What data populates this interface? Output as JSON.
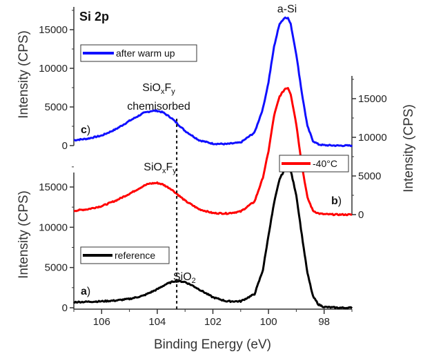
{
  "chart_data": {
    "type": "line",
    "title": "Si 2p",
    "xlabel": "Binding Energy (eV)",
    "ylabel_left": "Intensity (CPS)",
    "ylabel_right": "Intensity (CPS)",
    "xlim": [
      107,
      97
    ],
    "x_ticks": [
      "106",
      "104",
      "102",
      "100",
      "98"
    ],
    "panel_c": {
      "label": "c",
      "ylim": [
        0,
        18000
      ],
      "y_ticks": [
        "0",
        "5000",
        "10000",
        "15000"
      ],
      "series": {
        "name": "after warm up",
        "color": "#1010ff",
        "x": [
          107,
          106.5,
          106,
          105.5,
          105,
          104.5,
          104.2,
          104,
          103.8,
          103.5,
          103,
          102.5,
          102,
          101.5,
          101,
          100.5,
          100.2,
          100,
          99.8,
          99.6,
          99.4,
          99.3,
          99.2,
          99,
          98.8,
          98.6,
          98.4,
          98.2,
          98,
          97.5,
          97
        ],
        "y": [
          700,
          900,
          1300,
          2100,
          3200,
          4200,
          4500,
          4500,
          4300,
          3600,
          1900,
          700,
          250,
          200,
          400,
          1700,
          4800,
          8200,
          12800,
          15800,
          16600,
          16500,
          15700,
          11800,
          6800,
          2500,
          600,
          150,
          50,
          0,
          0
        ]
      }
    },
    "panel_b": {
      "label": "b",
      "ylim": [
        0,
        18000
      ],
      "y_ticks": [
        "0",
        "5000",
        "10000",
        "15000"
      ],
      "series": {
        "name": "-40°C",
        "color": "#ff0000",
        "x": [
          107,
          106.5,
          106,
          105.5,
          105,
          104.5,
          104.3,
          104,
          103.8,
          103.5,
          103,
          102.5,
          102,
          101.5,
          101,
          100.5,
          100.2,
          100,
          99.8,
          99.6,
          99.4,
          99.3,
          99.2,
          99,
          98.8,
          98.6,
          98.4,
          98.2,
          98,
          97.5,
          97
        ],
        "y": [
          500,
          700,
          1100,
          1800,
          2700,
          3700,
          4000,
          4100,
          3900,
          3300,
          1800,
          700,
          200,
          150,
          400,
          1700,
          4800,
          8200,
          12800,
          15300,
          16300,
          16400,
          15600,
          11700,
          6400,
          2200,
          500,
          150,
          50,
          0,
          0
        ]
      }
    },
    "panel_a": {
      "label": "a",
      "ylim": [
        0,
        18000
      ],
      "y_ticks": [
        "0",
        "5000",
        "10000",
        "15000"
      ],
      "series": {
        "name": "reference",
        "color": "#000000",
        "x": [
          107,
          106.5,
          106,
          105.5,
          105,
          104.5,
          104,
          103.7,
          103.4,
          103.2,
          103,
          102.7,
          102.3,
          102,
          101.5,
          101,
          100.5,
          100.2,
          100,
          99.8,
          99.6,
          99.4,
          99.3,
          99.2,
          99,
          98.8,
          98.6,
          98.4,
          98.2,
          98,
          97.5,
          97
        ],
        "y": [
          700,
          750,
          800,
          900,
          1100,
          1500,
          2300,
          2900,
          3300,
          3300,
          3200,
          2700,
          1900,
          1300,
          800,
          800,
          1700,
          4700,
          9000,
          13000,
          16000,
          17300,
          17500,
          17000,
          14000,
          9000,
          4300,
          1400,
          400,
          100,
          0,
          0
        ]
      }
    },
    "annotations": {
      "a_si": "a-Si",
      "siox_chem_main": "SiO",
      "siox_chem_sub1": "x",
      "siox_chem_f": "F",
      "siox_chem_sub2": "y",
      "chemisorbed": "chemisorbed",
      "siox_b_main": "SiO",
      "siox_b_sub1": "x",
      "siox_b_f": "F",
      "siox_b_sub2": "y",
      "sio2_main": "SiO",
      "sio2_sub": "2"
    },
    "dashed_line_x": 103.3
  }
}
